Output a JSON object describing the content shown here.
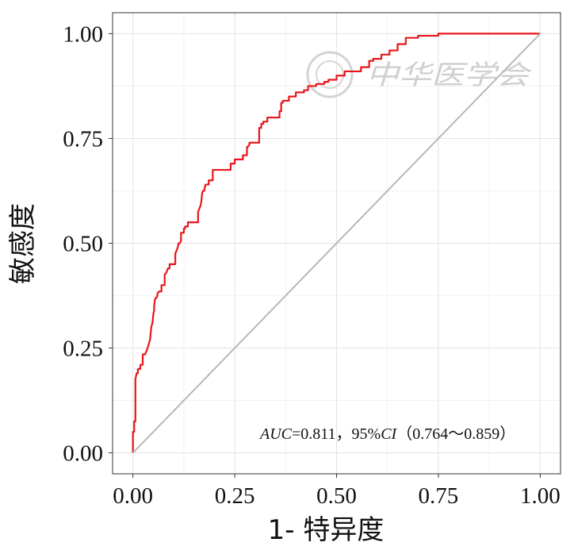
{
  "chart_data": {
    "type": "line",
    "title": "",
    "xlabel": "1- 特异度",
    "ylabel": "敏感度",
    "xlim": [
      -0.05,
      1.05
    ],
    "ylim": [
      -0.05,
      1.05
    ],
    "xticks": [
      "0.00",
      "0.25",
      "0.50",
      "0.75",
      "1.00"
    ],
    "yticks": [
      "0.00",
      "0.25",
      "0.50",
      "0.75",
      "1.00"
    ],
    "grid": true,
    "annotation": {
      "auc_label": "AUC",
      "auc_text": "=0.811，95%",
      "ci_label": "CI",
      "ci_text": "（0.764～0.859）"
    },
    "watermark": "中华医学会",
    "series": [
      {
        "color": "#e8161b",
        "x": [
          0.0,
          0.0,
          0.003,
          0.003,
          0.006,
          0.006,
          0.009,
          0.012,
          0.012,
          0.018,
          0.018,
          0.024,
          0.024,
          0.03,
          0.036,
          0.042,
          0.045,
          0.048,
          0.05,
          0.052,
          0.052,
          0.054,
          0.056,
          0.058,
          0.06,
          0.06,
          0.064,
          0.07,
          0.07,
          0.078,
          0.078,
          0.082,
          0.086,
          0.09,
          0.09,
          0.104,
          0.104,
          0.11,
          0.112,
          0.115,
          0.118,
          0.118,
          0.125,
          0.125,
          0.128,
          0.128,
          0.135,
          0.135,
          0.16,
          0.16,
          0.166,
          0.168,
          0.17,
          0.172,
          0.175,
          0.178,
          0.18,
          0.186,
          0.186,
          0.196,
          0.196,
          0.21,
          0.21,
          0.24,
          0.24,
          0.25,
          0.25,
          0.27,
          0.27,
          0.28,
          0.28,
          0.282,
          0.286,
          0.286,
          0.31,
          0.31,
          0.315,
          0.315,
          0.32,
          0.32,
          0.33,
          0.33,
          0.34,
          0.34,
          0.36,
          0.36,
          0.364,
          0.364,
          0.368,
          0.368,
          0.383,
          0.383,
          0.4,
          0.4,
          0.42,
          0.42,
          0.43,
          0.43,
          0.45,
          0.45,
          0.47,
          0.47,
          0.48,
          0.48,
          0.5,
          0.5,
          0.52,
          0.52,
          0.54,
          0.54,
          0.56,
          0.56,
          0.58,
          0.58,
          0.59,
          0.59,
          0.61,
          0.61,
          0.63,
          0.63,
          0.65,
          0.65,
          0.67,
          0.67,
          0.7,
          0.7,
          0.75,
          0.75,
          1.0
        ],
        "y": [
          0.0,
          0.05,
          0.05,
          0.075,
          0.075,
          0.175,
          0.19,
          0.19,
          0.2,
          0.2,
          0.21,
          0.21,
          0.235,
          0.235,
          0.25,
          0.27,
          0.3,
          0.31,
          0.33,
          0.34,
          0.35,
          0.365,
          0.37,
          0.37,
          0.375,
          0.38,
          0.385,
          0.385,
          0.4,
          0.4,
          0.425,
          0.43,
          0.44,
          0.44,
          0.45,
          0.45,
          0.475,
          0.49,
          0.5,
          0.5,
          0.505,
          0.525,
          0.525,
          0.535,
          0.535,
          0.54,
          0.54,
          0.55,
          0.55,
          0.575,
          0.59,
          0.6,
          0.62,
          0.625,
          0.625,
          0.64,
          0.64,
          0.64,
          0.65,
          0.65,
          0.675,
          0.675,
          0.675,
          0.675,
          0.69,
          0.69,
          0.7,
          0.7,
          0.71,
          0.71,
          0.73,
          0.73,
          0.735,
          0.74,
          0.74,
          0.775,
          0.775,
          0.785,
          0.785,
          0.79,
          0.79,
          0.8,
          0.8,
          0.8,
          0.8,
          0.815,
          0.815,
          0.835,
          0.835,
          0.84,
          0.84,
          0.85,
          0.85,
          0.86,
          0.86,
          0.865,
          0.865,
          0.875,
          0.875,
          0.88,
          0.88,
          0.885,
          0.885,
          0.89,
          0.89,
          0.9,
          0.9,
          0.91,
          0.91,
          0.91,
          0.91,
          0.92,
          0.92,
          0.935,
          0.935,
          0.94,
          0.94,
          0.95,
          0.95,
          0.96,
          0.96,
          0.975,
          0.975,
          0.99,
          0.99,
          0.995,
          0.995,
          1.0,
          1.0
        ]
      },
      {
        "color": "#b8b8b8",
        "x": [
          0,
          1
        ],
        "y": [
          0,
          1
        ]
      }
    ]
  }
}
